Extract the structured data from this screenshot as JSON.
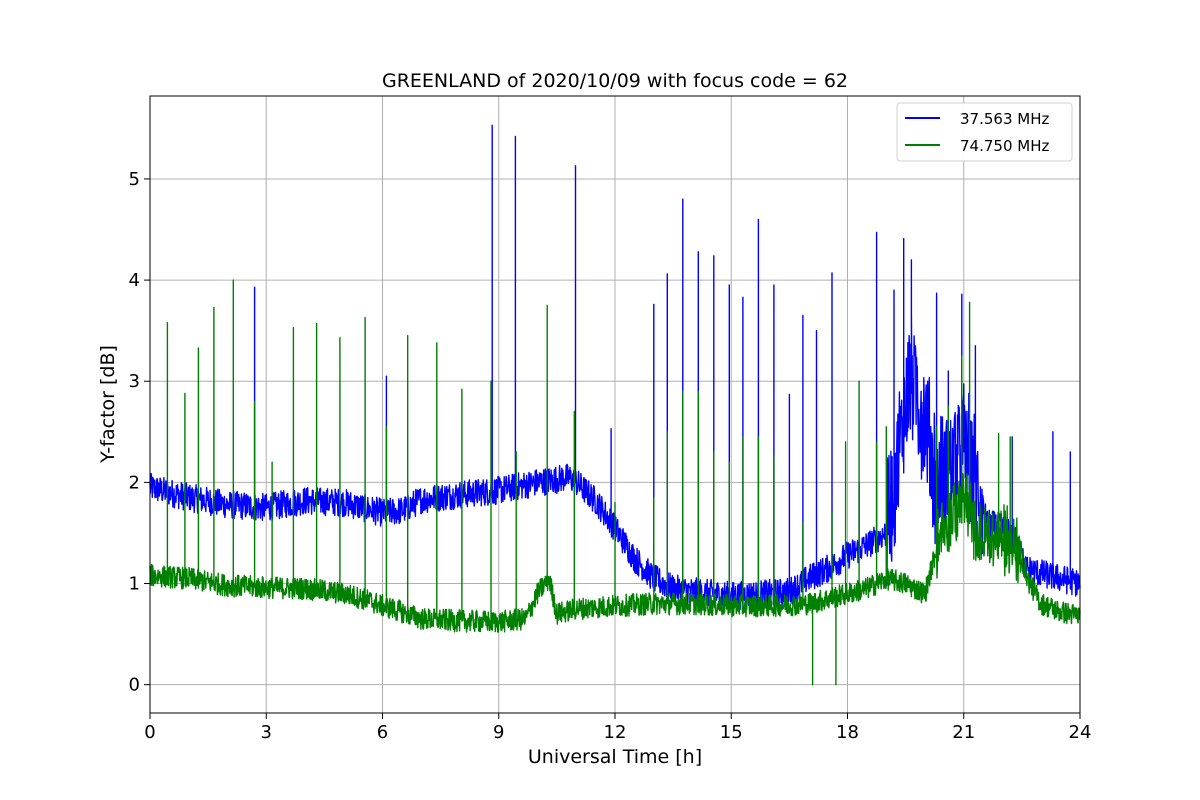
{
  "chart_data": {
    "type": "line",
    "title": "GREENLAND of 2020/10/09 with focus code = 62",
    "xlabel": "Universal Time [h]",
    "ylabel": "Y-factor [dB]",
    "xlim": [
      0,
      24
    ],
    "ylim": [
      -0.28,
      5.82
    ],
    "xticks": [
      0,
      3,
      6,
      9,
      12,
      15,
      18,
      21,
      24
    ],
    "yticks": [
      0,
      1,
      2,
      3,
      4,
      5
    ],
    "grid": true,
    "legend_position": "top-right",
    "series": [
      {
        "name": "37.563 MHz",
        "color": "#0000ff",
        "baseline": [
          [
            0,
            1.95
          ],
          [
            1,
            1.85
          ],
          [
            2,
            1.78
          ],
          [
            3,
            1.75
          ],
          [
            4,
            1.82
          ],
          [
            5,
            1.8
          ],
          [
            5.5,
            1.75
          ],
          [
            6,
            1.7
          ],
          [
            6.5,
            1.72
          ],
          [
            7,
            1.83
          ],
          [
            8,
            1.88
          ],
          [
            9,
            1.92
          ],
          [
            10,
            2.0
          ],
          [
            10.8,
            2.05
          ],
          [
            11,
            2.0
          ],
          [
            11.5,
            1.82
          ],
          [
            12,
            1.55
          ],
          [
            12.5,
            1.25
          ],
          [
            13,
            1.05
          ],
          [
            13.5,
            0.95
          ],
          [
            14,
            0.92
          ],
          [
            15,
            0.88
          ],
          [
            16,
            0.9
          ],
          [
            16.5,
            0.92
          ],
          [
            17,
            1.05
          ],
          [
            17.5,
            1.15
          ],
          [
            18,
            1.28
          ],
          [
            18.5,
            1.38
          ],
          [
            19,
            1.5
          ],
          [
            19.3,
            2.2
          ],
          [
            19.6,
            3.1
          ],
          [
            20,
            2.6
          ],
          [
            20.3,
            2.0
          ],
          [
            20.6,
            2.1
          ],
          [
            21,
            2.4
          ],
          [
            21.3,
            2.0
          ],
          [
            21.6,
            1.6
          ],
          [
            22,
            1.55
          ],
          [
            22.3,
            1.45
          ],
          [
            22.6,
            1.15
          ],
          [
            23,
            1.1
          ],
          [
            23.5,
            1.05
          ],
          [
            24,
            1.0
          ]
        ],
        "spikes": [
          [
            2.7,
            3.93
          ],
          [
            6.1,
            3.05
          ],
          [
            8.83,
            5.53
          ],
          [
            9.43,
            5.42
          ],
          [
            10.98,
            5.13
          ],
          [
            11.9,
            2.53
          ],
          [
            13.0,
            3.76
          ],
          [
            13.35,
            4.06
          ],
          [
            13.75,
            4.8
          ],
          [
            14.15,
            4.28
          ],
          [
            14.55,
            4.24
          ],
          [
            14.95,
            3.95
          ],
          [
            15.3,
            3.83
          ],
          [
            15.7,
            4.6
          ],
          [
            16.1,
            3.95
          ],
          [
            16.5,
            2.87
          ],
          [
            16.85,
            3.65
          ],
          [
            17.2,
            3.5
          ],
          [
            17.6,
            4.07
          ],
          [
            18.3,
            2.0
          ],
          [
            18.75,
            4.47
          ],
          [
            19.2,
            3.9
          ],
          [
            19.45,
            4.41
          ],
          [
            19.65,
            4.2
          ],
          [
            20.3,
            3.87
          ],
          [
            20.6,
            3.1
          ],
          [
            20.95,
            3.86
          ],
          [
            21.3,
            3.35
          ],
          [
            22.25,
            2.45
          ],
          [
            23.3,
            2.5
          ],
          [
            23.75,
            2.3
          ]
        ],
        "noise": 0.28
      },
      {
        "name": "74.750 MHz",
        "color": "#008000",
        "baseline": [
          [
            0,
            1.08
          ],
          [
            1,
            1.05
          ],
          [
            2,
            0.98
          ],
          [
            3,
            0.96
          ],
          [
            4,
            0.95
          ],
          [
            5,
            0.9
          ],
          [
            5.5,
            0.85
          ],
          [
            6,
            0.78
          ],
          [
            6.5,
            0.72
          ],
          [
            7,
            0.65
          ],
          [
            8,
            0.63
          ],
          [
            9,
            0.62
          ],
          [
            9.7,
            0.65
          ],
          [
            10,
            0.9
          ],
          [
            10.3,
            1.05
          ],
          [
            10.5,
            0.7
          ],
          [
            11,
            0.75
          ],
          [
            12,
            0.78
          ],
          [
            13,
            0.8
          ],
          [
            14,
            0.8
          ],
          [
            15,
            0.78
          ],
          [
            16,
            0.78
          ],
          [
            17,
            0.8
          ],
          [
            17.5,
            0.85
          ],
          [
            18,
            0.9
          ],
          [
            18.5,
            0.95
          ],
          [
            19,
            1.05
          ],
          [
            19.5,
            1.0
          ],
          [
            20,
            0.9
          ],
          [
            20.4,
            1.5
          ],
          [
            20.8,
            1.7
          ],
          [
            21,
            1.9
          ],
          [
            21.3,
            1.45
          ],
          [
            21.6,
            1.45
          ],
          [
            22,
            1.45
          ],
          [
            22.4,
            1.35
          ],
          [
            22.7,
            1.0
          ],
          [
            23,
            0.8
          ],
          [
            23.5,
            0.72
          ],
          [
            24,
            0.68
          ]
        ],
        "spikes": [
          [
            0.45,
            3.58
          ],
          [
            0.9,
            2.88
          ],
          [
            1.25,
            3.33
          ],
          [
            1.65,
            3.73
          ],
          [
            2.15,
            4.0
          ],
          [
            2.7,
            2.8
          ],
          [
            3.15,
            2.2
          ],
          [
            3.7,
            3.53
          ],
          [
            4.3,
            3.57
          ],
          [
            4.9,
            3.43
          ],
          [
            5.55,
            3.63
          ],
          [
            6.1,
            2.55
          ],
          [
            6.65,
            3.45
          ],
          [
            7.4,
            3.38
          ],
          [
            8.05,
            2.92
          ],
          [
            8.8,
            3.0
          ],
          [
            9.45,
            2.3
          ],
          [
            10.25,
            3.75
          ],
          [
            10.95,
            2.7
          ],
          [
            12.0,
            1.8
          ],
          [
            13.0,
            1.85
          ],
          [
            13.35,
            2.5
          ],
          [
            13.75,
            2.9
          ],
          [
            14.15,
            2.9
          ],
          [
            14.55,
            2.3
          ],
          [
            14.95,
            2.2
          ],
          [
            15.3,
            2.45
          ],
          [
            15.7,
            2.45
          ],
          [
            16.1,
            2.25
          ],
          [
            16.85,
            1.6
          ],
          [
            17.6,
            1.7
          ],
          [
            17.95,
            2.4
          ],
          [
            18.3,
            3.0
          ],
          [
            18.75,
            2.4
          ],
          [
            19.0,
            2.55
          ],
          [
            20.3,
            2.55
          ],
          [
            20.6,
            2.75
          ],
          [
            20.95,
            3.25
          ],
          [
            21.15,
            3.78
          ],
          [
            21.9,
            2.48
          ],
          [
            22.2,
            2.45
          ]
        ],
        "dips": [
          [
            17.1,
            0.0
          ],
          [
            17.7,
            0.0
          ]
        ],
        "noise": 0.22
      }
    ]
  }
}
